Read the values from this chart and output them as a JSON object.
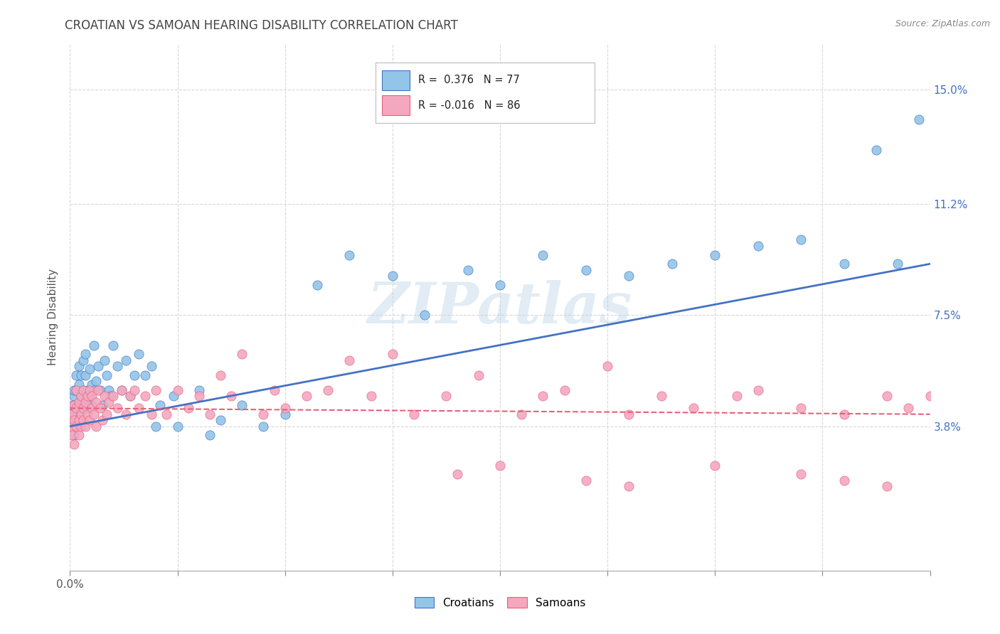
{
  "title": "CROATIAN VS SAMOAN HEARING DISABILITY CORRELATION CHART",
  "source": "Source: ZipAtlas.com",
  "ylabel": "Hearing Disability",
  "xlim": [
    0.0,
    0.4
  ],
  "ylim": [
    -0.01,
    0.165
  ],
  "xticks": [
    0.0,
    0.05,
    0.1,
    0.15,
    0.2,
    0.25,
    0.3,
    0.35,
    0.4
  ],
  "xticklabels_show": {
    "0.0": "0.0%"
  },
  "yticks": [
    0.038,
    0.075,
    0.112,
    0.15
  ],
  "yticklabels": [
    "3.8%",
    "7.5%",
    "11.2%",
    "15.0%"
  ],
  "croatian_R": 0.376,
  "croatian_N": 77,
  "samoan_R": -0.016,
  "samoan_N": 86,
  "croatian_color": "#92C5E8",
  "samoan_color": "#F4A8C0",
  "trendline_croatian_color": "#4472C4",
  "trendline_samoan_color": "#E8607A",
  "background_color": "#FFFFFF",
  "grid_color": "#D8D8D8",
  "title_color": "#404040",
  "watermark": "ZIPatlas",
  "croatian_x": [
    0.001,
    0.001,
    0.001,
    0.002,
    0.002,
    0.002,
    0.002,
    0.003,
    0.003,
    0.003,
    0.003,
    0.004,
    0.004,
    0.004,
    0.004,
    0.005,
    0.005,
    0.005,
    0.005,
    0.006,
    0.006,
    0.006,
    0.007,
    0.007,
    0.007,
    0.008,
    0.008,
    0.009,
    0.009,
    0.01,
    0.01,
    0.011,
    0.011,
    0.012,
    0.013,
    0.014,
    0.015,
    0.016,
    0.017,
    0.018,
    0.019,
    0.02,
    0.022,
    0.024,
    0.026,
    0.028,
    0.03,
    0.032,
    0.035,
    0.038,
    0.04,
    0.042,
    0.048,
    0.05,
    0.06,
    0.065,
    0.07,
    0.08,
    0.09,
    0.1,
    0.115,
    0.13,
    0.15,
    0.165,
    0.185,
    0.2,
    0.22,
    0.24,
    0.26,
    0.28,
    0.3,
    0.32,
    0.34,
    0.36,
    0.375,
    0.385,
    0.395
  ],
  "croatian_y": [
    0.04,
    0.045,
    0.038,
    0.042,
    0.048,
    0.035,
    0.05,
    0.04,
    0.044,
    0.05,
    0.055,
    0.038,
    0.045,
    0.052,
    0.058,
    0.043,
    0.048,
    0.04,
    0.055,
    0.045,
    0.05,
    0.06,
    0.047,
    0.055,
    0.062,
    0.044,
    0.05,
    0.048,
    0.057,
    0.045,
    0.052,
    0.05,
    0.065,
    0.053,
    0.058,
    0.05,
    0.045,
    0.06,
    0.055,
    0.05,
    0.048,
    0.065,
    0.058,
    0.05,
    0.06,
    0.048,
    0.055,
    0.062,
    0.055,
    0.058,
    0.038,
    0.045,
    0.048,
    0.038,
    0.05,
    0.035,
    0.04,
    0.045,
    0.038,
    0.042,
    0.085,
    0.095,
    0.088,
    0.075,
    0.09,
    0.085,
    0.095,
    0.09,
    0.088,
    0.092,
    0.095,
    0.098,
    0.1,
    0.092,
    0.13,
    0.092,
    0.14
  ],
  "samoan_x": [
    0.001,
    0.001,
    0.001,
    0.002,
    0.002,
    0.002,
    0.003,
    0.003,
    0.003,
    0.004,
    0.004,
    0.004,
    0.005,
    0.005,
    0.005,
    0.006,
    0.006,
    0.006,
    0.007,
    0.007,
    0.008,
    0.008,
    0.009,
    0.009,
    0.01,
    0.01,
    0.011,
    0.012,
    0.012,
    0.013,
    0.014,
    0.015,
    0.016,
    0.017,
    0.018,
    0.02,
    0.022,
    0.024,
    0.026,
    0.028,
    0.03,
    0.032,
    0.035,
    0.038,
    0.04,
    0.045,
    0.05,
    0.055,
    0.06,
    0.065,
    0.07,
    0.075,
    0.08,
    0.09,
    0.095,
    0.1,
    0.11,
    0.12,
    0.13,
    0.14,
    0.15,
    0.16,
    0.175,
    0.19,
    0.21,
    0.22,
    0.23,
    0.25,
    0.26,
    0.275,
    0.29,
    0.31,
    0.32,
    0.34,
    0.36,
    0.38,
    0.39,
    0.4,
    0.18,
    0.2,
    0.24,
    0.26,
    0.3,
    0.34,
    0.36,
    0.38
  ],
  "samoan_y": [
    0.038,
    0.042,
    0.035,
    0.04,
    0.045,
    0.032,
    0.038,
    0.044,
    0.05,
    0.04,
    0.046,
    0.035,
    0.042,
    0.048,
    0.038,
    0.04,
    0.05,
    0.044,
    0.046,
    0.038,
    0.042,
    0.048,
    0.04,
    0.05,
    0.044,
    0.048,
    0.042,
    0.046,
    0.038,
    0.05,
    0.044,
    0.04,
    0.048,
    0.042,
    0.046,
    0.048,
    0.044,
    0.05,
    0.042,
    0.048,
    0.05,
    0.044,
    0.048,
    0.042,
    0.05,
    0.042,
    0.05,
    0.044,
    0.048,
    0.042,
    0.055,
    0.048,
    0.062,
    0.042,
    0.05,
    0.044,
    0.048,
    0.05,
    0.06,
    0.048,
    0.062,
    0.042,
    0.048,
    0.055,
    0.042,
    0.048,
    0.05,
    0.058,
    0.042,
    0.048,
    0.044,
    0.048,
    0.05,
    0.044,
    0.042,
    0.048,
    0.044,
    0.048,
    0.022,
    0.025,
    0.02,
    0.018,
    0.025,
    0.022,
    0.02,
    0.018
  ],
  "trendline_x_start": 0.0,
  "trendline_x_end": 0.4,
  "trendline_c_y_start": 0.038,
  "trendline_c_y_end": 0.092,
  "trendline_s_y_start": 0.044,
  "trendline_s_y_end": 0.042
}
